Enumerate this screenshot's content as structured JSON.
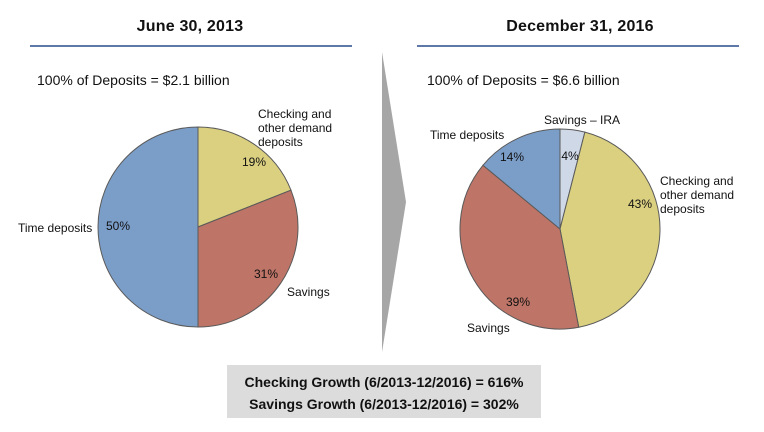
{
  "chart_data": [
    {
      "type": "pie",
      "title": "June 30, 2013",
      "subtitle": "100% of Deposits = $2.1 billion",
      "slices": [
        {
          "label": "Checking and other demand deposits",
          "value": 19,
          "value_label": "19%",
          "color": "#dbd080"
        },
        {
          "label": "Savings",
          "value": 31,
          "value_label": "31%",
          "color": "#be7466"
        },
        {
          "label": "Time deposits",
          "value": 50,
          "value_label": "50%",
          "color": "#7b9ec9"
        }
      ]
    },
    {
      "type": "pie",
      "title": "December 31, 2016",
      "subtitle": "100% of Deposits = $6.6 billion",
      "slices": [
        {
          "label": "Savings – IRA",
          "value": 4,
          "value_label": "4%",
          "color": "#cfd8e6"
        },
        {
          "label": "Checking and other demand deposits",
          "value": 43,
          "value_label": "43%",
          "color": "#dbd080"
        },
        {
          "label": "Savings",
          "value": 39,
          "value_label": "39%",
          "color": "#be7466"
        },
        {
          "label": "Time deposits",
          "value": 14,
          "value_label": "14%",
          "color": "#7b9ec9"
        }
      ]
    }
  ],
  "summary": {
    "checking_growth": "Checking Growth (6/2013-12/2016) = 616%",
    "savings_growth": "Savings Growth (6/2013-12/2016) = 302%"
  }
}
